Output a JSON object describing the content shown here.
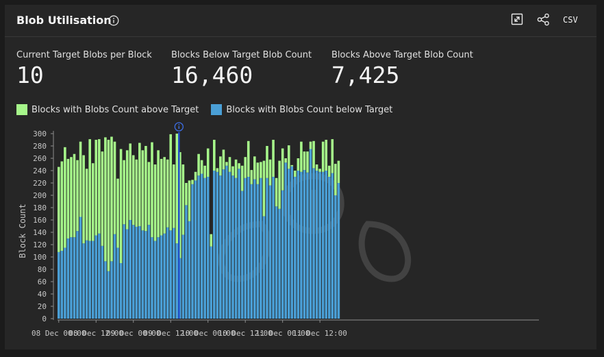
{
  "header": {
    "title": "Blob Utilisation",
    "csv_label": "CSV"
  },
  "stats": [
    {
      "label": "Current Target Blobs per Block",
      "value": "10"
    },
    {
      "label": "Blocks Below Target Blob Count",
      "value": "16,460"
    },
    {
      "label": "Blocks Above Target Blob Count",
      "value": "7,425"
    }
  ],
  "colors": {
    "above": "#a6f68a",
    "below": "#4a9fd6",
    "marker": "#1f4fd0"
  },
  "chart_data": {
    "type": "bar",
    "stacked": true,
    "ylabel": "Block Count",
    "ylim": [
      0,
      300
    ],
    "yticks": [
      0,
      20,
      40,
      60,
      80,
      100,
      120,
      140,
      160,
      180,
      200,
      220,
      240,
      260,
      280,
      300
    ],
    "xtick_labels": [
      "08 Dec 00:00",
      "08 Dec 12:00",
      "09 Dec 00:00",
      "09 Dec 12:00",
      "10 Dec 00:00",
      "10 Dec 12:00",
      "11 Dec 00:00",
      "11 Dec 12:00"
    ],
    "interval": "1 hour",
    "start": "08 Dec 00:00",
    "marker_annotation": {
      "x": "09 Dec 14:00",
      "icon": "info-icon"
    },
    "series": [
      {
        "name": "Blocks with Blobs Count below Target",
        "values": [
          108,
          110,
          115,
          130,
          132,
          132,
          142,
          165,
          122,
          127,
          126,
          126,
          135,
          138,
          118,
          93,
          77,
          93,
          137,
          115,
          90,
          153,
          145,
          160,
          152,
          149,
          150,
          143,
          142,
          152,
          132,
          126,
          132,
          135,
          138,
          148,
          143,
          147,
          122,
          98,
          136,
          184,
          158,
          218,
          224,
          232,
          235,
          228,
          230,
          117,
          240,
          238,
          232,
          242,
          248,
          238,
          232,
          228,
          243,
          207,
          228,
          230,
          218,
          226,
          218,
          228,
          166,
          228,
          216,
          230,
          182,
          178,
          208,
          253,
          243,
          247,
          230,
          240,
          238,
          241,
          237,
          275,
          244,
          240,
          238,
          238,
          240,
          230,
          236,
          200,
          220
        ]
      },
      {
        "name": "Blocks with Blobs Count above Target",
        "values": [
          138,
          145,
          163,
          129,
          130,
          135,
          115,
          122,
          143,
          116,
          165,
          126,
          155,
          153,
          153,
          201,
          213,
          202,
          150,
          112,
          185,
          104,
          128,
          124,
          113,
          109,
          135,
          130,
          138,
          102,
          154,
          124,
          141,
          124,
          124,
          110,
          156,
          103,
          178,
          172,
          114,
          36,
          66,
          7,
          14,
          35,
          22,
          20,
          46,
          20,
          50,
          6,
          31,
          32,
          6,
          24,
          15,
          30,
          9,
          41,
          34,
          58,
          23,
          37,
          35,
          26,
          90,
          52,
          42,
          60,
          46,
          78,
          68,
          7,
          38,
          2,
          10,
          20,
          49,
          30,
          34,
          12,
          44,
          10,
          5,
          49,
          50,
          18,
          55,
          51,
          36
        ]
      }
    ]
  }
}
